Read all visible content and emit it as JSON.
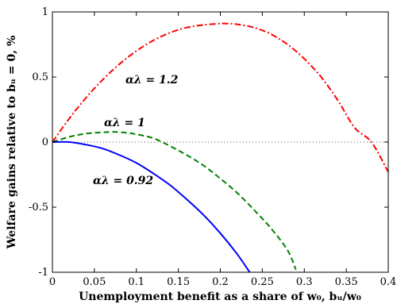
{
  "chart_data": {
    "type": "line",
    "title": "",
    "xlabel": "Unemployment benefit as a share of w₀, bᵤ/w₀",
    "ylabel": "Welfare gains relative to bᵤ = 0, %",
    "xlim": [
      0,
      0.4
    ],
    "ylim": [
      -1,
      1
    ],
    "xticks": [
      0,
      0.05,
      0.1,
      0.15,
      0.2,
      0.25,
      0.3,
      0.35,
      0.4
    ],
    "xtick_labels": [
      "0",
      "0.05",
      "0.1",
      "0.15",
      "0.2",
      "0.25",
      "0.3",
      "0.35",
      "0.4"
    ],
    "yticks": [
      -1,
      -0.5,
      0,
      0.5,
      1
    ],
    "ytick_labels": [
      "-1",
      "-0.5",
      "0",
      "0.5",
      "1"
    ],
    "grid": false,
    "legend": "inline labels",
    "reference_line": {
      "y": 0,
      "style": "dotted",
      "color": "#555555"
    },
    "series": [
      {
        "name": "αλ = 1.2",
        "color": "#ff0000",
        "style": "dashdot",
        "x": [
          0,
          0.02,
          0.04,
          0.06,
          0.08,
          0.1,
          0.12,
          0.14,
          0.16,
          0.18,
          0.2,
          0.21,
          0.22,
          0.24,
          0.26,
          0.28,
          0.3,
          0.32,
          0.34,
          0.36,
          0.38,
          0.4
        ],
        "y": [
          0,
          0.18,
          0.34,
          0.48,
          0.6,
          0.7,
          0.78,
          0.84,
          0.88,
          0.9,
          0.91,
          0.91,
          0.905,
          0.88,
          0.83,
          0.75,
          0.64,
          0.5,
          0.32,
          0.11,
          0.0,
          -0.23
        ]
      },
      {
        "name": "αλ = 1",
        "color": "#008000",
        "style": "dashed",
        "x": [
          0,
          0.02,
          0.04,
          0.06,
          0.075,
          0.09,
          0.1,
          0.12,
          0.14,
          0.16,
          0.18,
          0.2,
          0.22,
          0.24,
          0.26,
          0.28,
          0.29
        ],
        "y": [
          0,
          0.04,
          0.065,
          0.075,
          0.078,
          0.07,
          0.06,
          0.03,
          -0.03,
          -0.1,
          -0.18,
          -0.28,
          -0.39,
          -0.52,
          -0.66,
          -0.83,
          -0.98
        ]
      },
      {
        "name": "αλ = 0.92",
        "color": "#0000ff",
        "style": "solid",
        "x": [
          0,
          0.02,
          0.04,
          0.06,
          0.08,
          0.1,
          0.12,
          0.14,
          0.16,
          0.18,
          0.2,
          0.22,
          0.235
        ],
        "y": [
          0,
          0,
          -0.02,
          -0.05,
          -0.1,
          -0.16,
          -0.24,
          -0.33,
          -0.44,
          -0.56,
          -0.7,
          -0.86,
          -1.0
        ]
      }
    ]
  }
}
